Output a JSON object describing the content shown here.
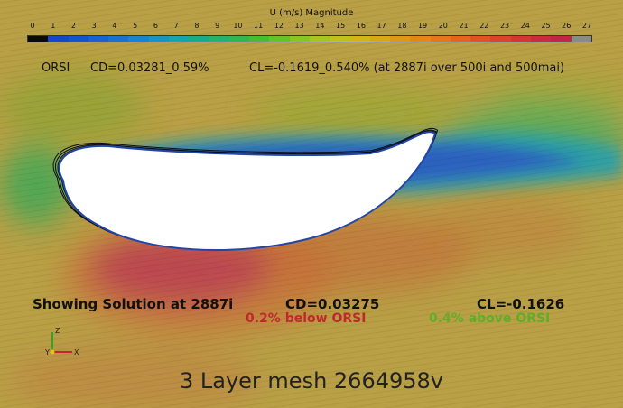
{
  "colorbar": {
    "title": "U (m/s) Magnitude",
    "ticks": [
      "0",
      "1",
      "2",
      "3",
      "4",
      "5",
      "6",
      "7",
      "8",
      "9",
      "10",
      "11",
      "12",
      "13",
      "14",
      "15",
      "16",
      "17",
      "18",
      "19",
      "20",
      "21",
      "22",
      "23",
      "24",
      "25",
      "26",
      "27"
    ],
    "colors": [
      "#0a0a0a",
      "#1447c8",
      "#1552d2",
      "#1462d6",
      "#1573d4",
      "#1784cf",
      "#1596c2",
      "#13a6ac",
      "#15ae8c",
      "#22b36c",
      "#2fb84e",
      "#47bd34",
      "#66c229",
      "#86c722",
      "#a4c71e",
      "#bdc419",
      "#cfb816",
      "#d9a814",
      "#e09814",
      "#e48716",
      "#e7761a",
      "#e7641f",
      "#e35225",
      "#dc432c",
      "#d53634",
      "#cb2c3d",
      "#c02646",
      "#8a8a8a"
    ]
  },
  "orsi": {
    "label": "ORSI",
    "cd": "CD=0.03281_0.59%",
    "cl": "CL=-0.1619_0.540% (at 2887i over 500i and 500mai)"
  },
  "solution": {
    "label": "Showing Solution at 2887i",
    "cd": "CD=0.03275",
    "cl": "CL=-0.1626",
    "cd_diff": "0.2% below ORSI",
    "cl_diff": "0.4% above ORSI",
    "cd_diff_color": "#c0282e",
    "cl_diff_color": "#5fae2a"
  },
  "axes": {
    "z": "Z",
    "y": "Y",
    "x": "X"
  },
  "mesh_label": "3 Layer mesh 2664958v"
}
